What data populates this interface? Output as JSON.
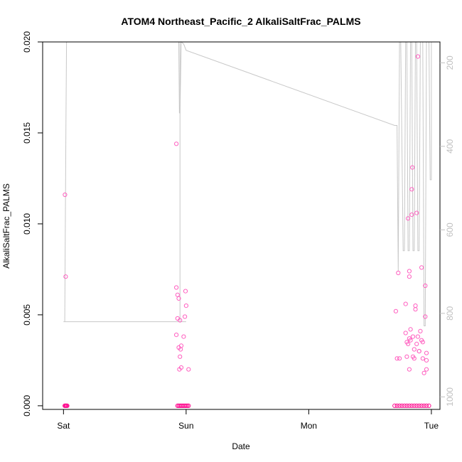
{
  "chart_data": {
    "type": "scatter",
    "title": "ATOM4 Northeast_Pacific_2 AlkaliSaltFrac_PALMS",
    "xlabel": "Date",
    "ylabel": "AlkaliSaltFrac_PALMS",
    "x_ticks": [
      {
        "label": "Sat",
        "value": 0
      },
      {
        "label": "Sun",
        "value": 1
      },
      {
        "label": "Mon",
        "value": 2
      },
      {
        "label": "Tue",
        "value": 3
      }
    ],
    "xlim": [
      -0.17,
      3.07
    ],
    "ylim": [
      -0.0002,
      0.02
    ],
    "y_ticks": [
      "0.000",
      "0.005",
      "0.010",
      "0.015",
      "0.020"
    ],
    "y2_ticks": [
      "200",
      "400",
      "600",
      "800",
      "1000"
    ],
    "y2lim": [
      1030,
      150
    ],
    "grid": false,
    "colors": {
      "points": "#ff1493",
      "points_light": "#ff60c0",
      "line": "#c8c8c8",
      "axis": "#000000",
      "axis_right": "#c0c0c0"
    },
    "points": [
      [
        0.01,
        0
      ],
      [
        0.015,
        0
      ],
      [
        0.02,
        0
      ],
      [
        0.025,
        0
      ],
      [
        0.03,
        0
      ],
      [
        0.012,
        0.0116
      ],
      [
        0.018,
        0.0071
      ],
      [
        0.92,
        0.0144
      ],
      [
        0.92,
        0.0065
      ],
      [
        0.93,
        0.0061
      ],
      [
        0.94,
        0.0059
      ],
      [
        0.93,
        0.0048
      ],
      [
        0.95,
        0.0047
      ],
      [
        0.92,
        0.0039
      ],
      [
        0.94,
        0.0032
      ],
      [
        0.95,
        0.0027
      ],
      [
        0.96,
        0.0033
      ],
      [
        0.955,
        0.0031
      ],
      [
        0.96,
        0.0021
      ],
      [
        0.945,
        0.002
      ],
      [
        0.98,
        0.0038
      ],
      [
        0.99,
        0.0049
      ],
      [
        0.995,
        0.0063
      ],
      [
        1.0,
        0.0055
      ],
      [
        1.02,
        0.002
      ],
      [
        0.93,
        0
      ],
      [
        0.94,
        0
      ],
      [
        0.95,
        0
      ],
      [
        0.96,
        0
      ],
      [
        0.97,
        0
      ],
      [
        0.98,
        0
      ],
      [
        0.99,
        0
      ],
      [
        1.0,
        0
      ],
      [
        1.01,
        0
      ],
      [
        1.02,
        0
      ],
      [
        2.71,
        0.0052
      ],
      [
        2.73,
        0.0073
      ],
      [
        2.72,
        0.0026
      ],
      [
        2.74,
        0.0026
      ],
      [
        2.79,
        0.004
      ],
      [
        2.79,
        0.0056
      ],
      [
        2.8,
        0.0027
      ],
      [
        2.81,
        0.0103
      ],
      [
        2.81,
        0.0034
      ],
      [
        2.82,
        0.0074
      ],
      [
        2.82,
        0.0071
      ],
      [
        2.82,
        0.002
      ],
      [
        2.83,
        0.0042
      ],
      [
        2.84,
        0.0119
      ],
      [
        2.845,
        0.0131
      ],
      [
        2.84,
        0.0105
      ],
      [
        2.85,
        0.0038
      ],
      [
        2.85,
        0.0027
      ],
      [
        2.86,
        0.0026
      ],
      [
        2.86,
        0.0031
      ],
      [
        2.87,
        0.0055
      ],
      [
        2.87,
        0.0053
      ],
      [
        2.88,
        0.0106
      ],
      [
        2.88,
        0.0034
      ],
      [
        2.89,
        0.0192
      ],
      [
        2.89,
        0.0038
      ],
      [
        2.9,
        0.003
      ],
      [
        2.91,
        0.0041
      ],
      [
        2.92,
        0.0076
      ],
      [
        2.92,
        0.0036
      ],
      [
        2.93,
        0.0035
      ],
      [
        2.93,
        0.0026
      ],
      [
        2.94,
        0.0018
      ],
      [
        2.95,
        0.0049
      ],
      [
        2.95,
        0.0066
      ],
      [
        2.96,
        0.0029
      ],
      [
        2.96,
        0.0025
      ],
      [
        2.96,
        0.002
      ],
      [
        2.8,
        0.0035
      ],
      [
        2.82,
        0.0037
      ],
      [
        2.9,
        0.003
      ],
      [
        2.83,
        0.0036
      ],
      [
        2.7,
        0
      ],
      [
        2.72,
        0
      ],
      [
        2.74,
        0
      ],
      [
        2.76,
        0
      ],
      [
        2.78,
        0
      ],
      [
        2.8,
        0
      ],
      [
        2.82,
        0
      ],
      [
        2.84,
        0
      ],
      [
        2.86,
        0
      ],
      [
        2.88,
        0
      ],
      [
        2.9,
        0
      ],
      [
        2.92,
        0
      ],
      [
        2.94,
        0
      ],
      [
        2.96,
        0
      ],
      [
        2.98,
        0
      ]
    ],
    "line": [
      [
        0.0,
        820
      ],
      [
        0.01,
        820
      ],
      [
        0.02,
        340
      ],
      [
        0.025,
        150
      ],
      [
        0.9,
        150
      ],
      [
        0.92,
        150
      ],
      [
        0.93,
        150
      ],
      [
        0.94,
        150
      ],
      [
        0.945,
        320
      ],
      [
        0.95,
        320
      ],
      [
        0.96,
        150
      ],
      [
        0.98,
        155
      ],
      [
        1.0,
        170
      ],
      [
        2.7,
        350
      ],
      [
        2.72,
        350
      ],
      [
        2.73,
        700
      ],
      [
        2.74,
        150
      ],
      [
        2.75,
        150
      ],
      [
        2.77,
        650
      ],
      [
        2.78,
        650
      ],
      [
        2.79,
        150
      ],
      [
        2.8,
        150
      ],
      [
        2.81,
        650
      ],
      [
        2.82,
        650
      ],
      [
        2.83,
        150
      ],
      [
        2.84,
        150
      ],
      [
        2.85,
        650
      ],
      [
        2.86,
        650
      ],
      [
        2.87,
        150
      ],
      [
        2.88,
        150
      ],
      [
        2.89,
        650
      ],
      [
        2.9,
        650
      ],
      [
        2.91,
        150
      ],
      [
        2.93,
        150
      ],
      [
        2.94,
        830
      ],
      [
        2.95,
        830
      ],
      [
        2.96,
        150
      ],
      [
        2.98,
        150
      ],
      [
        2.99,
        480
      ],
      [
        3.0,
        480
      ],
      [
        3.0,
        150
      ]
    ],
    "line_segments_extra": [
      [
        [
          0.01,
          820
        ],
        [
          1.0,
          820
        ]
      ],
      [
        [
          0.95,
          820
        ],
        [
          0.95,
          150
        ]
      ]
    ]
  }
}
